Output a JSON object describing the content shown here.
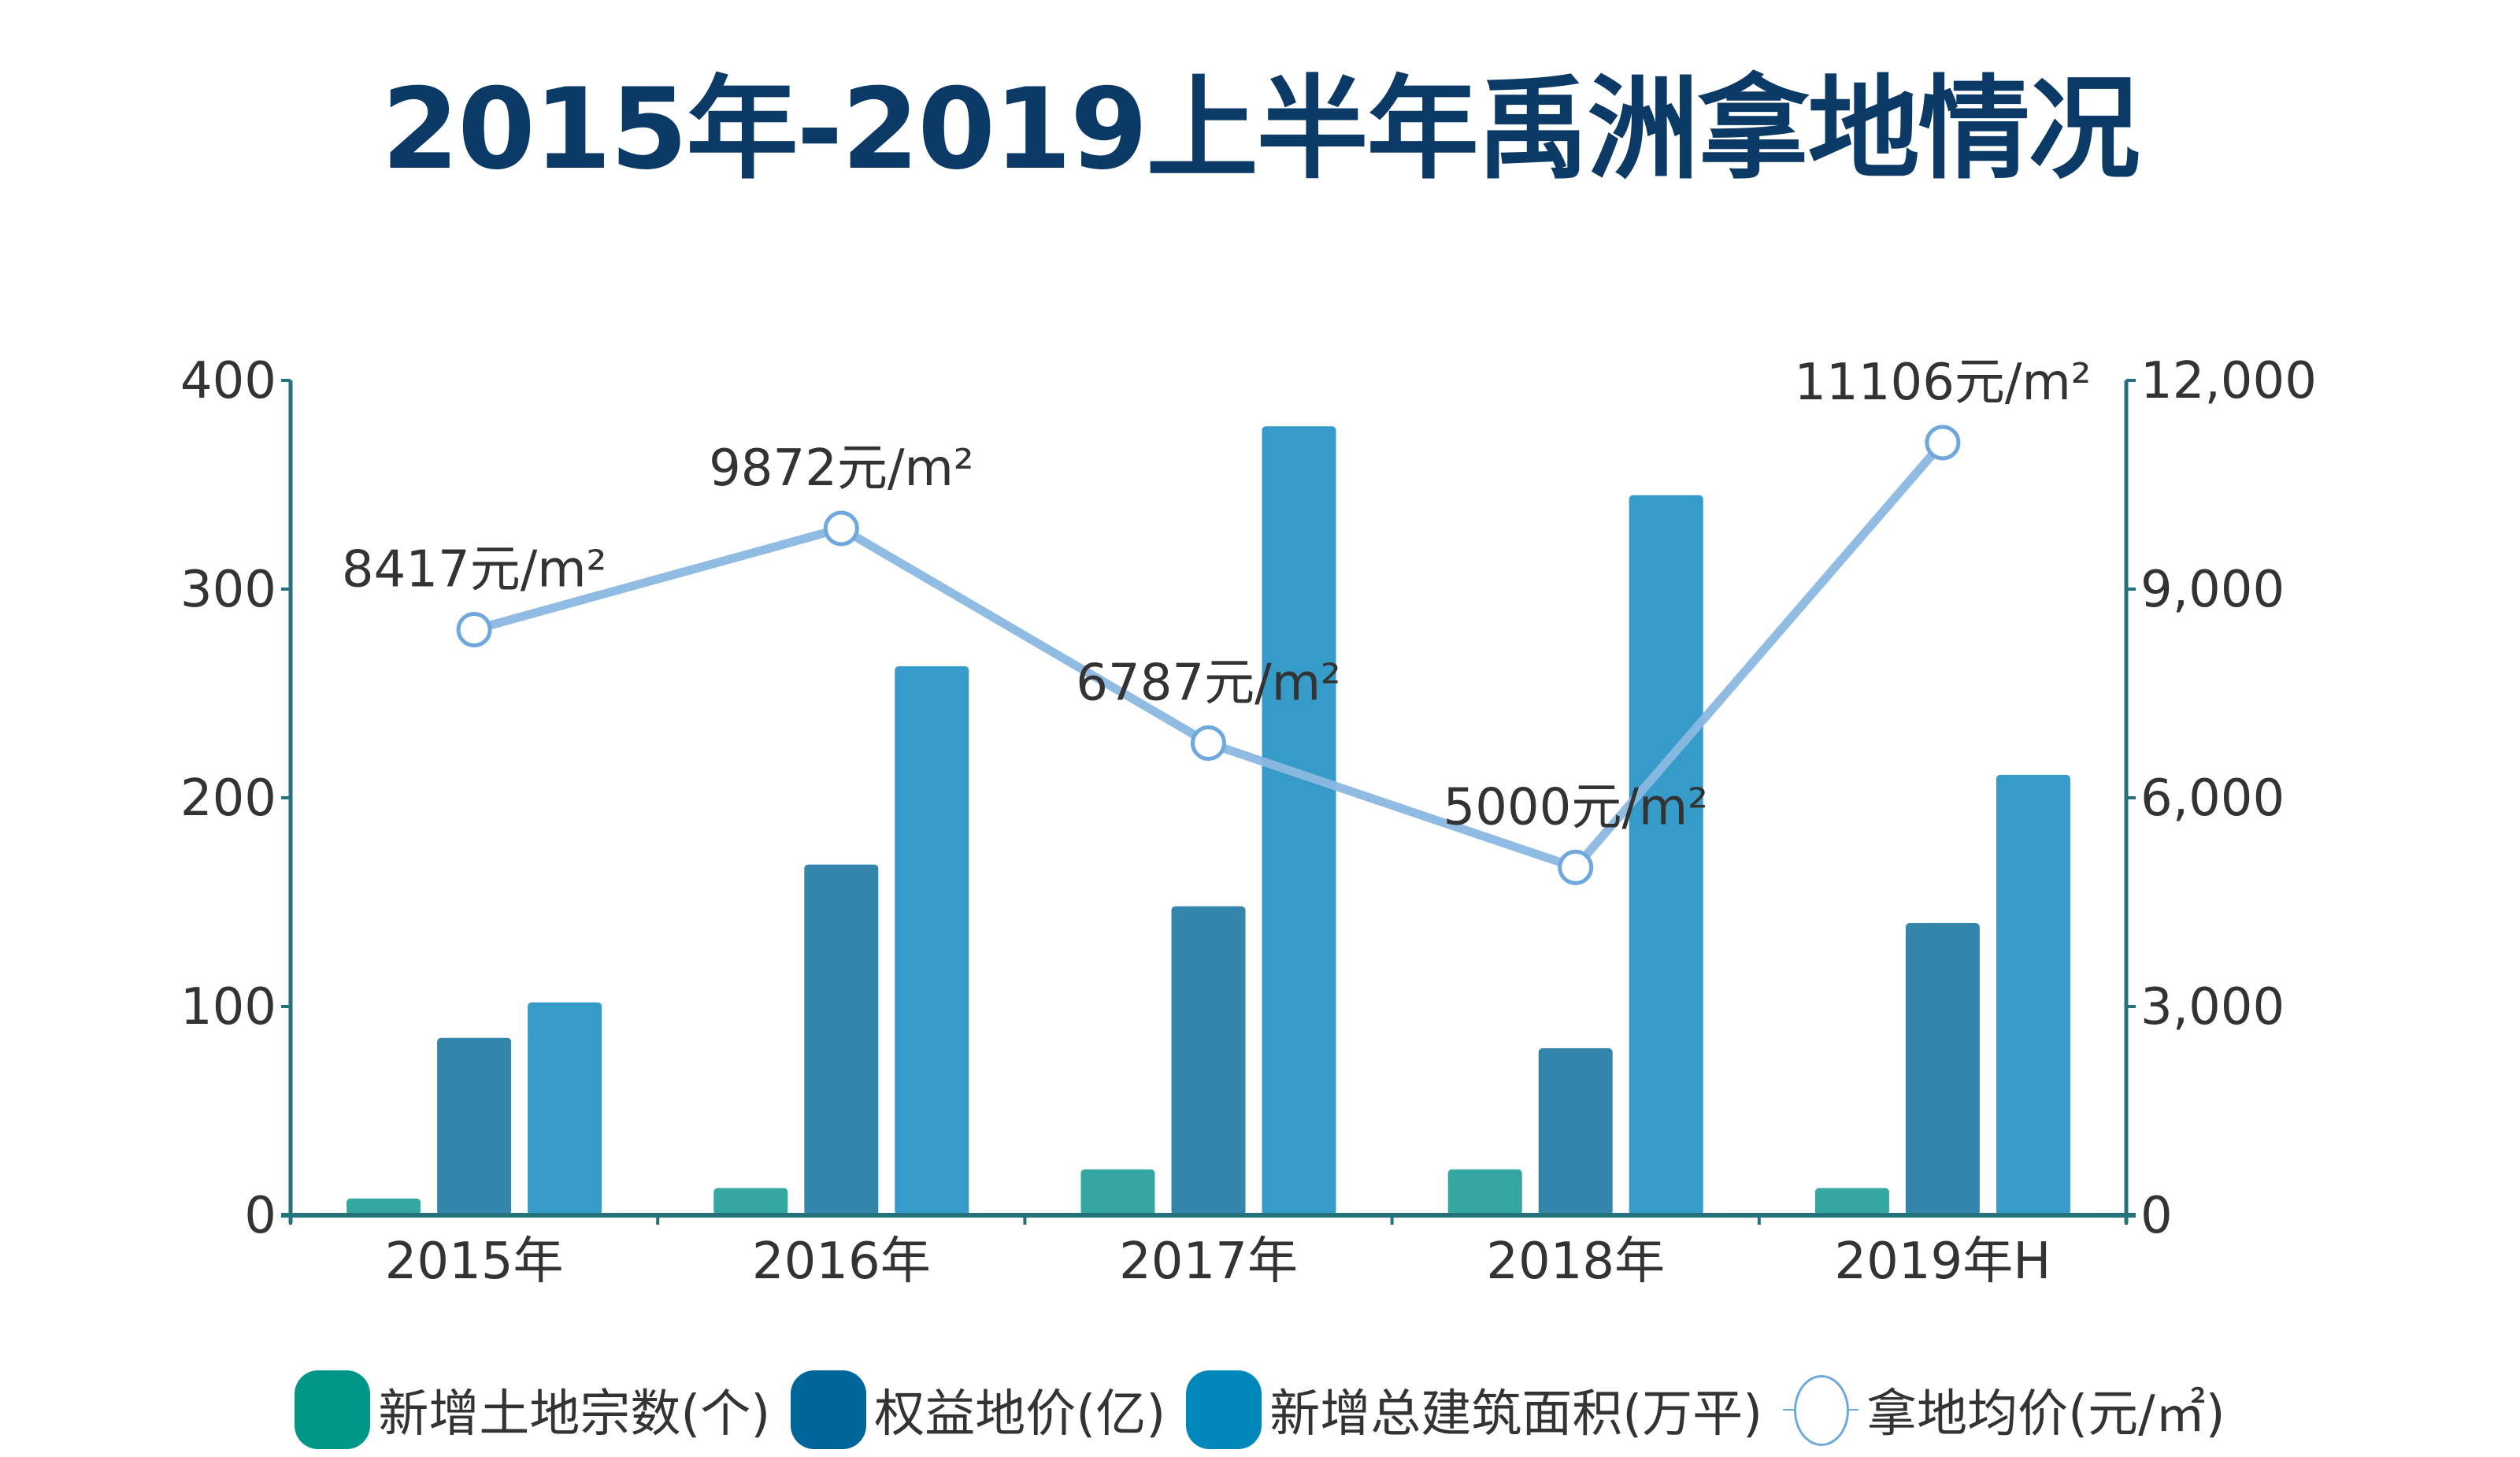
{
  "chart_data": {
    "type": "bar",
    "title": "2015年-2019上半年禹洲拿地情况",
    "categories": [
      "2015年",
      "2016年",
      "2017年",
      "2018年",
      "2019年H"
    ],
    "y_left": {
      "ylim": [
        0,
        400
      ],
      "ticks": [
        0,
        100,
        200,
        300,
        400
      ],
      "tick_labels": [
        "0",
        "100",
        "200",
        "300",
        "400"
      ]
    },
    "y_right": {
      "ylim": [
        0,
        12000
      ],
      "ticks": [
        0,
        3000,
        6000,
        9000,
        12000
      ],
      "tick_labels": [
        "0",
        "3,000",
        "6,000",
        "9,000",
        "12,000"
      ]
    },
    "grid": false,
    "legend_position": "bottom",
    "series": [
      {
        "name": "新增土地宗数(个)",
        "type": "bar",
        "axis": "left",
        "color": "#34a8a0",
        "legend_color": "#009688",
        "values": [
          8,
          13,
          22,
          22,
          13
        ]
      },
      {
        "name": "权益地价(亿)",
        "type": "bar",
        "axis": "left",
        "color": "#3385ac",
        "legend_color": "#006699",
        "values": [
          85,
          168,
          148,
          80,
          140
        ]
      },
      {
        "name": "新增总建筑面积(万平)",
        "type": "bar",
        "axis": "left",
        "color": "#369bc8",
        "legend_color": "#0088bb",
        "values": [
          102,
          263,
          378,
          345,
          211
        ]
      },
      {
        "name": "拿地均价(元/㎡)",
        "type": "line",
        "axis": "right",
        "color": "#8ab8e2",
        "marker_color": "#6fa8dc",
        "values": [
          8417,
          9872,
          6787,
          5000,
          11106
        ],
        "data_labels": [
          "8417元/m²",
          "9872元/m²",
          "6787元/m²",
          "5000元/m²",
          "11106元/m²"
        ]
      }
    ],
    "axis_color": "#25727d"
  }
}
